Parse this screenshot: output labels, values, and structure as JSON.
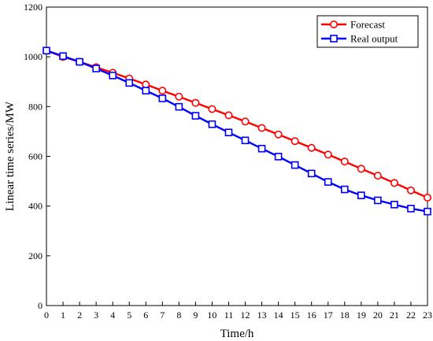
{
  "chart_data": {
    "type": "line",
    "title": "",
    "xlabel": "Time/h",
    "ylabel": "Linear time series/MW",
    "xlim": [
      0,
      23
    ],
    "ylim": [
      0,
      1200
    ],
    "xticks": [
      0,
      1,
      2,
      3,
      4,
      5,
      6,
      7,
      8,
      9,
      10,
      11,
      12,
      13,
      14,
      15,
      16,
      17,
      18,
      19,
      20,
      21,
      22,
      23
    ],
    "yticks": [
      0,
      200,
      400,
      600,
      800,
      1000,
      1200
    ],
    "grid": false,
    "legend_position": "top-right",
    "x": [
      0,
      1,
      2,
      3,
      4,
      5,
      6,
      7,
      8,
      9,
      10,
      11,
      12,
      13,
      14,
      15,
      16,
      17,
      18,
      19,
      20,
      21,
      22,
      23
    ],
    "series": [
      {
        "name": "Forecast",
        "color": "#ff0000",
        "marker": "circle",
        "values": [
          1025,
          1000,
          980,
          958,
          936,
          913,
          889,
          864,
          840,
          815,
          790,
          765,
          740,
          714,
          688,
          661,
          634,
          607,
          579,
          550,
          522,
          493,
          463,
          434
        ]
      },
      {
        "name": "Real output",
        "color": "#0000ff",
        "marker": "square",
        "values": [
          1025,
          1003,
          980,
          953,
          925,
          895,
          864,
          833,
          799,
          763,
          729,
          696,
          664,
          631,
          599,
          565,
          531,
          497,
          467,
          443,
          423,
          406,
          390,
          378
        ]
      }
    ]
  }
}
